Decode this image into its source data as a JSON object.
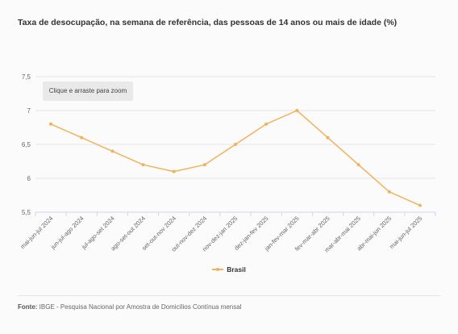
{
  "title": "Taxa de desocupação, na semana de referência, das pessoas de 14 anos ou mais de idade (%)",
  "zoom_hint": "Clique e arraste para zoom",
  "source_label": "Fonte:",
  "source_text": "IBGE - Pesquisa Nacional por Amostra de Domicílios Contínua mensal",
  "chart_data": {
    "type": "line",
    "categories": [
      "mai-jun-jul 2024",
      "jun-jul-ago 2024",
      "jul-ago-set 2024",
      "ago-set-out 2024",
      "set-out-nov 2024",
      "out-nov-dez 2024",
      "nov-dez-jan 2025",
      "dez-jan-fev 2025",
      "jan-fev-mar 2025",
      "fev-mar-abr 2025",
      "mar-abr-mai 2025",
      "abr-mai-jun 2025",
      "mai-jun-jul 2025"
    ],
    "series": [
      {
        "name": "Brasil",
        "color": "#f0b35c",
        "values": [
          6.8,
          6.6,
          6.4,
          6.2,
          6.1,
          6.2,
          6.5,
          6.8,
          7.0,
          6.6,
          6.2,
          5.8,
          5.6
        ]
      }
    ],
    "ylim": [
      5.5,
      7.5
    ],
    "yticks": [
      "5,5",
      "6",
      "6,5",
      "7",
      "7,5"
    ],
    "ytick_values": [
      5.5,
      6,
      6.5,
      7,
      7.5
    ],
    "grid": true,
    "legend_position": "bottom-center"
  }
}
